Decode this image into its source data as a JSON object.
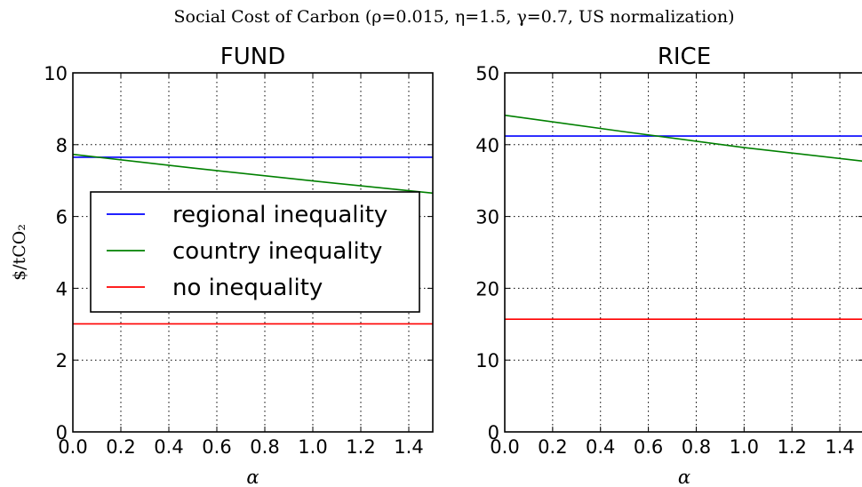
{
  "figure": {
    "suptitle": "Social Cost of Carbon (ρ=0.015, η=1.5, γ=0.7, US normalization)"
  },
  "chart_data": [
    {
      "type": "line",
      "title": "FUND",
      "xlabel": "α",
      "ylabel": "$/tCO₂",
      "xlim": [
        0.0,
        1.5
      ],
      "ylim": [
        0,
        10
      ],
      "xticks": [
        "0.0",
        "0.2",
        "0.4",
        "0.6",
        "0.8",
        "1.0",
        "1.2",
        "1.4"
      ],
      "yticks": [
        "0",
        "2",
        "4",
        "6",
        "8",
        "10"
      ],
      "grid": true,
      "legend_position": "center-left",
      "series": [
        {
          "name": "regional inequality",
          "color": "#0000ff",
          "x": [
            0.0,
            1.5
          ],
          "y": [
            7.65,
            7.65
          ]
        },
        {
          "name": "country inequality",
          "color": "#008000",
          "x": [
            0.0,
            0.5,
            1.0,
            1.5
          ],
          "y": [
            7.73,
            7.35,
            6.99,
            6.65
          ]
        },
        {
          "name": "no inequality",
          "color": "#ff0000",
          "x": [
            0.0,
            1.5
          ],
          "y": [
            3.01,
            3.01
          ]
        }
      ]
    },
    {
      "type": "line",
      "title": "RICE",
      "xlabel": "α",
      "ylabel": "",
      "xlim": [
        0.0,
        1.5
      ],
      "ylim": [
        0,
        50
      ],
      "xticks": [
        "0.0",
        "0.2",
        "0.4",
        "0.6",
        "0.8",
        "1.0",
        "1.2",
        "1.4"
      ],
      "yticks": [
        "0",
        "10",
        "20",
        "30",
        "40",
        "50"
      ],
      "grid": true,
      "series": [
        {
          "color": "#0000ff",
          "x": [
            0.0,
            1.5
          ],
          "y": [
            41.2,
            41.2
          ]
        },
        {
          "color": "#008000",
          "x": [
            0.0,
            0.5,
            1.0,
            1.5
          ],
          "y": [
            44.1,
            41.8,
            39.6,
            37.7
          ]
        },
        {
          "color": "#ff0000",
          "x": [
            0.0,
            1.5
          ],
          "y": [
            15.7,
            15.7
          ]
        }
      ]
    }
  ]
}
